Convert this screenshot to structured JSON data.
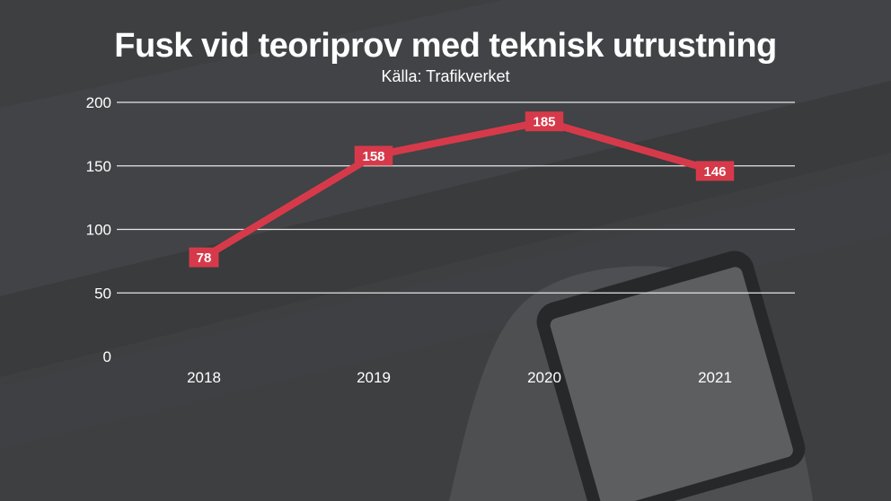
{
  "title": "Fusk vid teoriprov med teknisk utrustning",
  "subtitle": "Källa: Trafikverket",
  "colors": {
    "line": "#d63a4a",
    "label_bg": "#d63a4a",
    "grid": "#e6e6e6",
    "text": "#ffffff"
  },
  "chart_data": {
    "type": "line",
    "title": "Fusk vid teoriprov med teknisk utrustning",
    "subtitle": "Källa: Trafikverket",
    "xlabel": "",
    "ylabel": "",
    "categories": [
      "2018",
      "2019",
      "2020",
      "2021"
    ],
    "series": [
      {
        "values": [
          78,
          158,
          185,
          146
        ]
      }
    ],
    "data_labels": [
      "78",
      "158",
      "185",
      "146"
    ],
    "y_ticks": [
      "0",
      "50",
      "100",
      "150",
      "200"
    ],
    "ylim": [
      0,
      200
    ],
    "grid": true,
    "legend": "none"
  }
}
